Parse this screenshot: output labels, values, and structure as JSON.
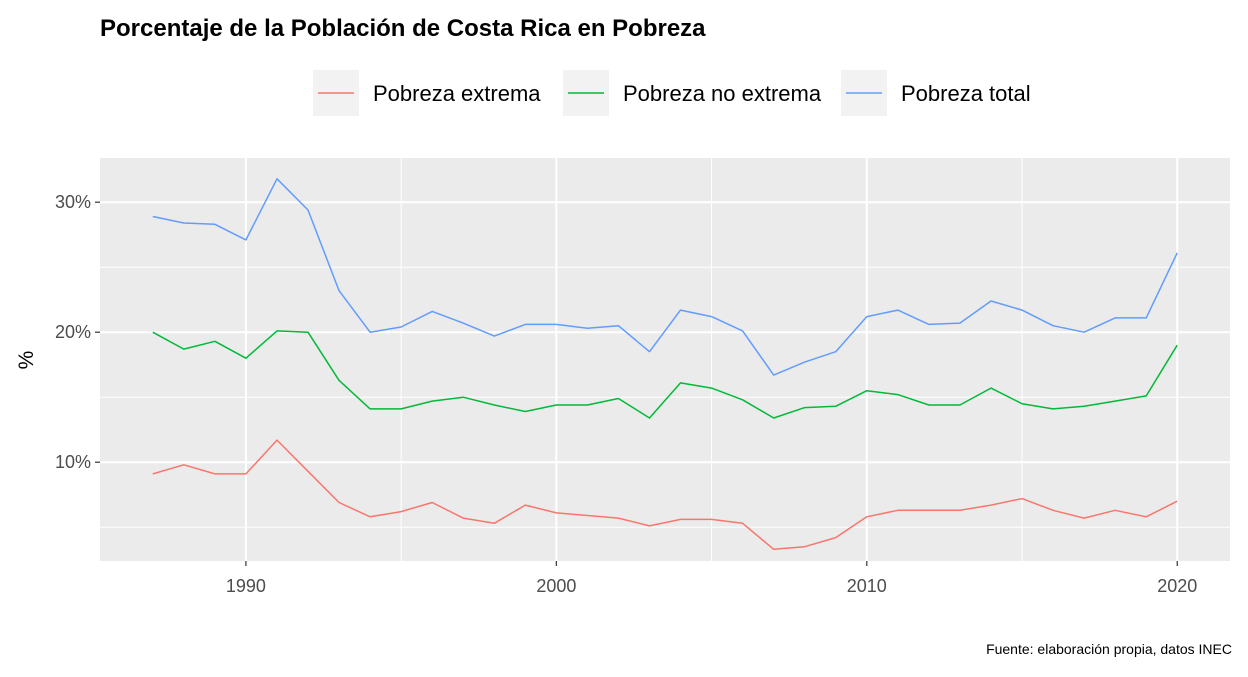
{
  "chart_data": {
    "type": "line",
    "title": "Porcentaje de la Población de Costa Rica en Pobreza",
    "xlabel": "",
    "ylabel": "%",
    "caption": "Fuente: elaboración propia, datos INEC",
    "legend_position": "top",
    "grid": true,
    "xlim": [
      1985.3,
      2021.7
    ],
    "ylim": [
      0.024,
      0.334
    ],
    "x_ticks": [
      1990,
      2000,
      2010,
      2020
    ],
    "x_tick_labels": [
      "1990",
      "2000",
      "2010",
      "2020"
    ],
    "y_ticks": [
      0.1,
      0.2,
      0.3
    ],
    "y_tick_labels": [
      "10%",
      "20%",
      "30%"
    ],
    "x": [
      1987,
      1988,
      1989,
      1990,
      1991,
      1992,
      1993,
      1994,
      1995,
      1996,
      1997,
      1998,
      1999,
      2000,
      2001,
      2002,
      2003,
      2004,
      2005,
      2006,
      2007,
      2008,
      2009,
      2010,
      2011,
      2012,
      2013,
      2014,
      2015,
      2016,
      2017,
      2018,
      2019,
      2020
    ],
    "series": [
      {
        "name": "Pobreza extrema",
        "color": "#F8766D",
        "values": [
          0.091,
          0.098,
          0.091,
          0.091,
          0.117,
          0.093,
          0.069,
          0.058,
          0.062,
          0.069,
          0.057,
          0.053,
          0.067,
          0.061,
          0.059,
          0.057,
          0.051,
          0.056,
          0.056,
          0.053,
          0.033,
          0.035,
          0.042,
          0.058,
          0.063,
          0.063,
          0.063,
          0.067,
          0.072,
          0.063,
          0.057,
          0.063,
          0.058,
          0.07
        ]
      },
      {
        "name": "Pobreza no extrema",
        "color": "#00BA38",
        "values": [
          0.2,
          0.187,
          0.193,
          0.18,
          0.201,
          0.2,
          0.163,
          0.141,
          0.141,
          0.147,
          0.15,
          0.144,
          0.139,
          0.144,
          0.144,
          0.149,
          0.134,
          0.161,
          0.157,
          0.148,
          0.134,
          0.142,
          0.143,
          0.155,
          0.152,
          0.144,
          0.144,
          0.157,
          0.145,
          0.141,
          0.143,
          0.147,
          0.151,
          0.19
        ]
      },
      {
        "name": "Pobreza total",
        "color": "#619CFF",
        "values": [
          0.289,
          0.284,
          0.283,
          0.271,
          0.318,
          0.294,
          0.232,
          0.2,
          0.204,
          0.216,
          0.207,
          0.197,
          0.206,
          0.206,
          0.203,
          0.205,
          0.185,
          0.217,
          0.212,
          0.201,
          0.167,
          0.177,
          0.185,
          0.212,
          0.217,
          0.206,
          0.207,
          0.224,
          0.217,
          0.205,
          0.2,
          0.211,
          0.211,
          0.261
        ]
      }
    ]
  }
}
